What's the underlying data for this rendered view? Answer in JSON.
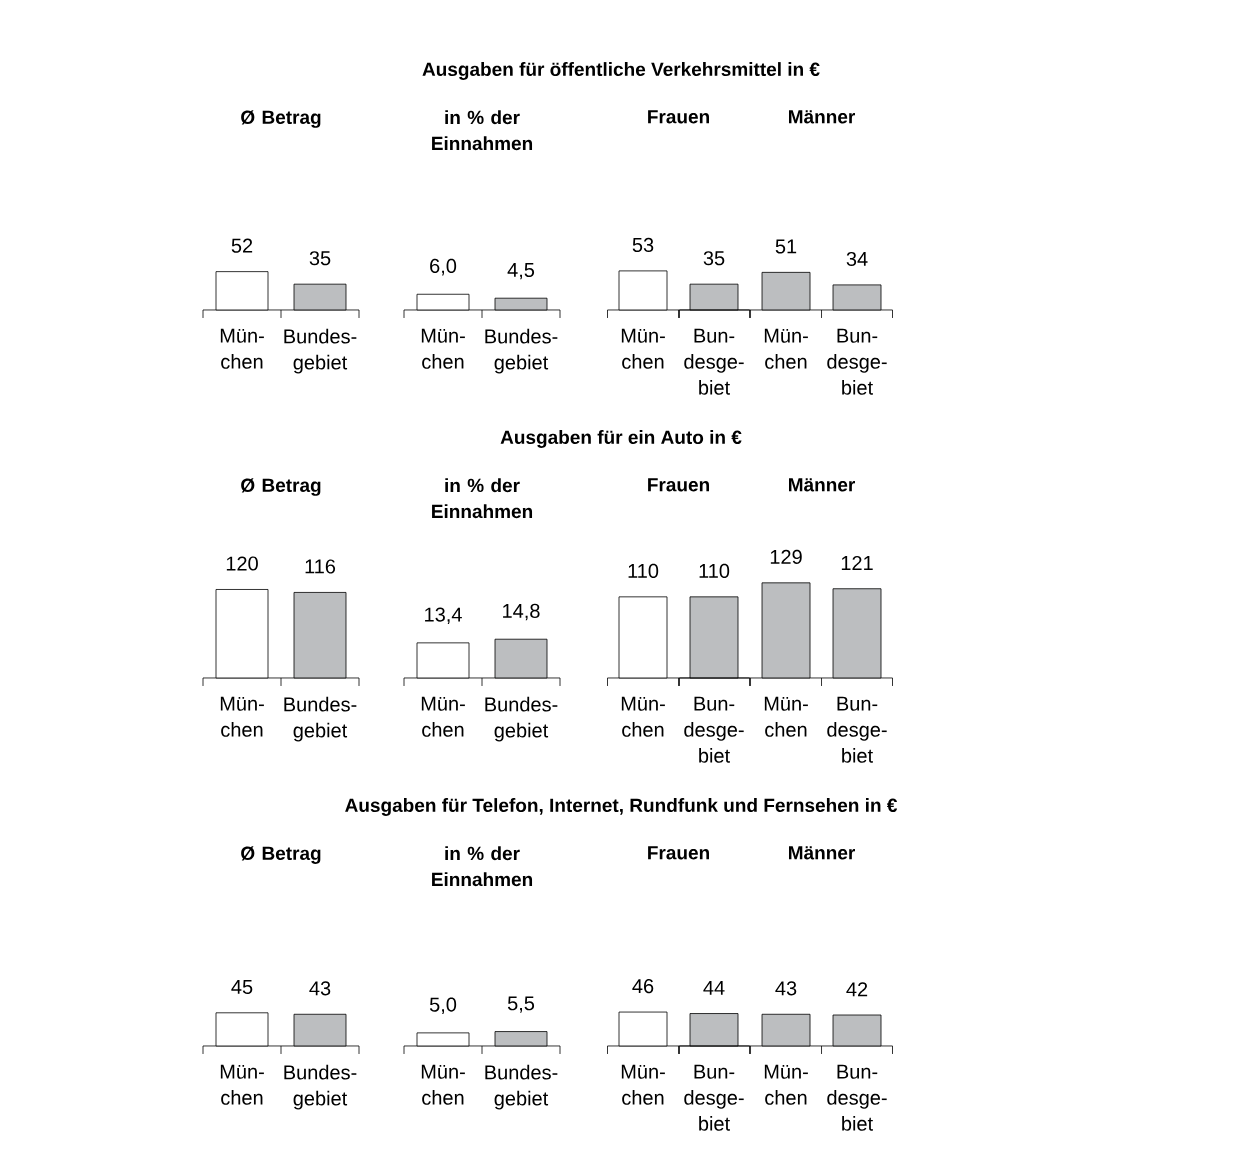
{
  "chart_data": [
    {
      "type": "other",
      "title": "Ausgaben für öffentliche Verkehrsmittel in €"
    },
    {
      "type": "bar",
      "subtitle": "Ø Betrag",
      "categories": [
        "Mün-chen",
        "Bundes-gebiet"
      ],
      "values": [
        52,
        35
      ],
      "colors": [
        "#ffffff",
        "#bcbec0"
      ],
      "value_labels": [
        "52",
        "35"
      ],
      "tick_labels": "x"
    },
    {
      "type": "bar",
      "subtitle": "in % der Einnahmen",
      "categories": [
        "Mün-chen",
        "Bundes-gebiet"
      ],
      "values": [
        6.0,
        4.5
      ],
      "colors": [
        "#ffffff",
        "#bcbec0"
      ],
      "value_labels": [
        "6,0",
        "4,5"
      ],
      "tick_labels": "x"
    },
    {
      "type": "bar",
      "subtitle": "Frauen",
      "categories": [
        "Mün-chen",
        "Bun-desge-biet"
      ],
      "values": [
        53,
        35
      ],
      "colors": [
        "#ffffff",
        "#bcbec0"
      ],
      "value_labels": [
        "53",
        "35"
      ],
      "tick_labels": "x"
    },
    {
      "type": "bar",
      "subtitle": "Männer",
      "categories": [
        "Mün-chen",
        "Bun-desge-biet"
      ],
      "values": [
        51,
        34
      ],
      "colors": [
        "#bcbec0",
        "#bcbec0"
      ],
      "value_labels": [
        "51",
        "34"
      ],
      "tick_labels": "x"
    },
    {
      "type": "other",
      "title": "Ausgaben für ein Auto in €"
    },
    {
      "type": "bar",
      "subtitle": "Ø Betrag",
      "categories": [
        "Mün-chen",
        "Bundes-gebiet"
      ],
      "values": [
        120,
        116
      ],
      "colors": [
        "#ffffff",
        "#bcbec0"
      ],
      "value_labels": [
        "120",
        "116"
      ],
      "tick_labels": "x"
    },
    {
      "type": "bar",
      "subtitle": "in % der Einnahmen",
      "categories": [
        "Mün-chen",
        "Bundes-gebiet"
      ],
      "values": [
        13.4,
        14.8
      ],
      "colors": [
        "#ffffff",
        "#bcbec0"
      ],
      "value_labels": [
        "13,4",
        "14,8"
      ],
      "tick_labels": "x"
    },
    {
      "type": "bar",
      "subtitle": "Frauen",
      "categories": [
        "Mün-chen",
        "Bun-desge-biet"
      ],
      "values": [
        110,
        110
      ],
      "colors": [
        "#ffffff",
        "#bcbec0"
      ],
      "value_labels": [
        "110",
        "110"
      ],
      "tick_labels": "x"
    },
    {
      "type": "bar",
      "subtitle": "Männer",
      "categories": [
        "Mün-chen",
        "Bun-desge-biet"
      ],
      "values": [
        129,
        121
      ],
      "colors": [
        "#bcbec0",
        "#bcbec0"
      ],
      "value_labels": [
        "129",
        "121"
      ],
      "tick_labels": "x"
    },
    {
      "type": "other",
      "title": "Ausgaben für Telefon, Internet, Rundfunk und Fernsehen in €"
    },
    {
      "type": "bar",
      "subtitle": "Ø Betrag",
      "categories": [
        "Mün-chen",
        "Bundes-gebiet"
      ],
      "values": [
        45,
        43
      ],
      "colors": [
        "#ffffff",
        "#bcbec0"
      ],
      "value_labels": [
        "45",
        "43"
      ],
      "tick_labels": "x"
    },
    {
      "type": "bar",
      "subtitle": "in % der Einnahmen",
      "categories": [
        "Mün-chen",
        "Bundes-gebiet"
      ],
      "values": [
        5.0,
        5.5
      ],
      "colors": [
        "#ffffff",
        "#bcbec0"
      ],
      "value_labels": [
        "5,0",
        "5,5"
      ],
      "tick_labels": "x"
    },
    {
      "type": "bar",
      "subtitle": "Frauen",
      "categories": [
        "Mün-chen",
        "Bun-desge-biet"
      ],
      "values": [
        46,
        44
      ],
      "colors": [
        "#ffffff",
        "#bcbec0"
      ],
      "value_labels": [
        "46",
        "44"
      ],
      "tick_labels": "x"
    },
    {
      "type": "bar",
      "subtitle": "Männer",
      "categories": [
        "Mün-chen",
        "Bun-desge-biet"
      ],
      "values": [
        43,
        42
      ],
      "colors": [
        "#bcbec0",
        "#bcbec0"
      ],
      "value_labels": [
        "43",
        "42"
      ],
      "tick_labels": "x"
    }
  ]
}
